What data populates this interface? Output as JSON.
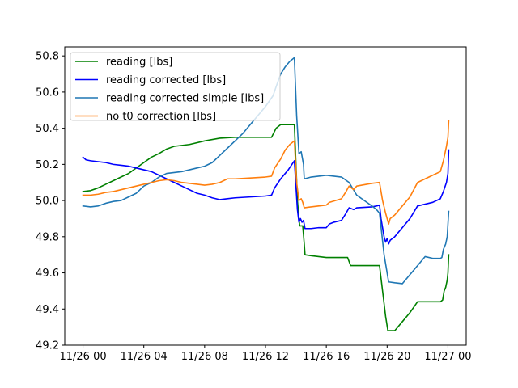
{
  "chart_data": {
    "type": "line",
    "title": "",
    "xlabel": "",
    "ylabel": "",
    "x_ticks": [
      "11/26 00",
      "11/26 04",
      "11/26 08",
      "11/26 12",
      "11/26 16",
      "11/26 20",
      "11/27 00"
    ],
    "x_tick_hours": [
      0,
      4,
      8,
      12,
      16,
      20,
      24
    ],
    "xlim_hours": [
      -1.2,
      25.2
    ],
    "y_ticks": [
      "49.2",
      "49.4",
      "49.6",
      "49.8",
      "50.0",
      "50.2",
      "50.4",
      "50.6",
      "50.8"
    ],
    "y_tick_values": [
      49.2,
      49.4,
      49.6,
      49.8,
      50.0,
      50.2,
      50.4,
      50.6,
      50.8
    ],
    "ylim": [
      49.2,
      50.85
    ],
    "legend": "top-left",
    "grid": false,
    "series": [
      {
        "name": "reading [lbs]",
        "color": "#008000",
        "points": [
          [
            0,
            50.05
          ],
          [
            0.5,
            50.055
          ],
          [
            1,
            50.07
          ],
          [
            1.5,
            50.09
          ],
          [
            2,
            50.11
          ],
          [
            2.5,
            50.13
          ],
          [
            3,
            50.15
          ],
          [
            3.5,
            50.18
          ],
          [
            4,
            50.21
          ],
          [
            4.5,
            50.24
          ],
          [
            5,
            50.26
          ],
          [
            5.5,
            50.285
          ],
          [
            6,
            50.3
          ],
          [
            7,
            50.31
          ],
          [
            8,
            50.33
          ],
          [
            9,
            50.345
          ],
          [
            10,
            50.35
          ],
          [
            11,
            50.35
          ],
          [
            12,
            50.35
          ],
          [
            12.4,
            50.35
          ],
          [
            12.7,
            50.4
          ],
          [
            13,
            50.42
          ],
          [
            13.5,
            50.42
          ],
          [
            13.9,
            50.42
          ],
          [
            14.1,
            50.0
          ],
          [
            14.25,
            49.86
          ],
          [
            14.45,
            49.86
          ],
          [
            14.55,
            49.76
          ],
          [
            14.6,
            49.7
          ],
          [
            15,
            49.695
          ],
          [
            16,
            49.685
          ],
          [
            17,
            49.685
          ],
          [
            17.4,
            49.685
          ],
          [
            17.6,
            49.64
          ],
          [
            18,
            49.64
          ],
          [
            19,
            49.64
          ],
          [
            19.5,
            49.64
          ],
          [
            19.7,
            49.5
          ],
          [
            19.9,
            49.36
          ],
          [
            20.05,
            49.28
          ],
          [
            20.5,
            49.28
          ],
          [
            21,
            49.33
          ],
          [
            21.5,
            49.38
          ],
          [
            22,
            49.44
          ],
          [
            22.5,
            49.44
          ],
          [
            23,
            49.44
          ],
          [
            23.5,
            49.44
          ],
          [
            23.65,
            49.45
          ],
          [
            23.75,
            49.5
          ],
          [
            23.85,
            49.52
          ],
          [
            23.95,
            49.56
          ],
          [
            24,
            49.6
          ],
          [
            24.05,
            49.7
          ]
        ]
      },
      {
        "name": "reading corrected [lbs]",
        "color": "#0000ff",
        "points": [
          [
            0,
            50.24
          ],
          [
            0.2,
            50.225
          ],
          [
            0.5,
            50.22
          ],
          [
            1,
            50.215
          ],
          [
            1.5,
            50.21
          ],
          [
            2,
            50.2
          ],
          [
            2.5,
            50.195
          ],
          [
            3,
            50.19
          ],
          [
            3.5,
            50.18
          ],
          [
            4,
            50.17
          ],
          [
            4.5,
            50.16
          ],
          [
            5,
            50.14
          ],
          [
            5.5,
            50.12
          ],
          [
            6,
            50.1
          ],
          [
            6.5,
            50.08
          ],
          [
            7,
            50.06
          ],
          [
            7.5,
            50.04
          ],
          [
            8,
            50.03
          ],
          [
            8.5,
            50.015
          ],
          [
            9,
            50.005
          ],
          [
            9.5,
            50.01
          ],
          [
            10,
            50.015
          ],
          [
            11,
            50.02
          ],
          [
            12,
            50.025
          ],
          [
            12.4,
            50.03
          ],
          [
            12.6,
            50.07
          ],
          [
            13,
            50.12
          ],
          [
            13.5,
            50.17
          ],
          [
            13.9,
            50.22
          ],
          [
            14.1,
            49.95
          ],
          [
            14.2,
            49.88
          ],
          [
            14.3,
            49.9
          ],
          [
            14.4,
            49.88
          ],
          [
            14.5,
            49.89
          ],
          [
            14.6,
            49.845
          ],
          [
            15,
            49.845
          ],
          [
            15.5,
            49.85
          ],
          [
            16,
            49.85
          ],
          [
            16.2,
            49.87
          ],
          [
            16.5,
            49.88
          ],
          [
            17,
            49.89
          ],
          [
            17.3,
            49.93
          ],
          [
            17.5,
            49.96
          ],
          [
            17.8,
            49.95
          ],
          [
            18,
            49.96
          ],
          [
            19,
            49.965
          ],
          [
            19.3,
            49.97
          ],
          [
            19.5,
            49.975
          ],
          [
            19.6,
            49.9
          ],
          [
            19.8,
            49.8
          ],
          [
            19.9,
            49.77
          ],
          [
            20,
            49.79
          ],
          [
            20.1,
            49.76
          ],
          [
            20.2,
            49.78
          ],
          [
            20.5,
            49.8
          ],
          [
            21,
            49.85
          ],
          [
            21.5,
            49.9
          ],
          [
            22,
            49.97
          ],
          [
            22.5,
            49.98
          ],
          [
            23,
            49.99
          ],
          [
            23.5,
            50.01
          ],
          [
            23.7,
            50.05
          ],
          [
            23.9,
            50.1
          ],
          [
            24,
            50.15
          ],
          [
            24.05,
            50.28
          ]
        ]
      },
      {
        "name": "reading corrected simple [lbs]",
        "color": "#1f77b4",
        "points": [
          [
            0,
            49.97
          ],
          [
            0.5,
            49.965
          ],
          [
            1,
            49.97
          ],
          [
            1.5,
            49.985
          ],
          [
            2,
            49.995
          ],
          [
            2.5,
            50.0
          ],
          [
            3,
            50.02
          ],
          [
            3.5,
            50.04
          ],
          [
            4,
            50.08
          ],
          [
            4.5,
            50.1
          ],
          [
            5,
            50.13
          ],
          [
            5.5,
            50.15
          ],
          [
            6,
            50.155
          ],
          [
            6.5,
            50.16
          ],
          [
            7,
            50.17
          ],
          [
            7.5,
            50.18
          ],
          [
            8,
            50.19
          ],
          [
            8.5,
            50.21
          ],
          [
            9,
            50.25
          ],
          [
            9.5,
            50.29
          ],
          [
            10,
            50.33
          ],
          [
            10.5,
            50.37
          ],
          [
            11,
            50.42
          ],
          [
            11.5,
            50.47
          ],
          [
            12,
            50.52
          ],
          [
            12.5,
            50.58
          ],
          [
            12.7,
            50.63
          ],
          [
            13,
            50.7
          ],
          [
            13.3,
            50.74
          ],
          [
            13.6,
            50.77
          ],
          [
            13.9,
            50.79
          ],
          [
            14.05,
            50.47
          ],
          [
            14.2,
            50.26
          ],
          [
            14.35,
            50.27
          ],
          [
            14.5,
            50.2
          ],
          [
            14.55,
            50.12
          ],
          [
            15,
            50.13
          ],
          [
            16,
            50.14
          ],
          [
            17,
            50.13
          ],
          [
            17.5,
            50.1
          ],
          [
            18,
            50.03
          ],
          [
            18.5,
            50.0
          ],
          [
            19,
            49.97
          ],
          [
            19.3,
            49.95
          ],
          [
            19.5,
            49.93
          ],
          [
            19.8,
            49.7
          ],
          [
            20.1,
            49.55
          ],
          [
            20.5,
            49.545
          ],
          [
            21,
            49.54
          ],
          [
            21.5,
            49.59
          ],
          [
            22,
            49.64
          ],
          [
            22.5,
            49.69
          ],
          [
            23,
            49.68
          ],
          [
            23.5,
            49.68
          ],
          [
            23.6,
            49.685
          ],
          [
            23.7,
            49.73
          ],
          [
            23.85,
            49.76
          ],
          [
            23.95,
            49.8
          ],
          [
            24.05,
            49.94
          ]
        ]
      },
      {
        "name": "no t0 correction [lbs]",
        "color": "#ff7f0e",
        "points": [
          [
            0,
            50.03
          ],
          [
            0.5,
            50.03
          ],
          [
            1,
            50.035
          ],
          [
            1.5,
            50.045
          ],
          [
            2,
            50.05
          ],
          [
            2.5,
            50.06
          ],
          [
            3,
            50.07
          ],
          [
            3.5,
            50.08
          ],
          [
            4,
            50.09
          ],
          [
            4.5,
            50.1
          ],
          [
            5,
            50.11
          ],
          [
            5.5,
            50.115
          ],
          [
            6,
            50.11
          ],
          [
            6.5,
            50.1
          ],
          [
            7,
            50.095
          ],
          [
            7.5,
            50.09
          ],
          [
            8,
            50.085
          ],
          [
            8.5,
            50.09
          ],
          [
            9,
            50.1
          ],
          [
            9.5,
            50.12
          ],
          [
            10,
            50.12
          ],
          [
            11,
            50.125
          ],
          [
            12,
            50.13
          ],
          [
            12.4,
            50.135
          ],
          [
            12.6,
            50.18
          ],
          [
            13,
            50.23
          ],
          [
            13.3,
            50.28
          ],
          [
            13.6,
            50.31
          ],
          [
            13.9,
            50.33
          ],
          [
            14.05,
            50.1
          ],
          [
            14.2,
            50.0
          ],
          [
            14.35,
            50.01
          ],
          [
            14.45,
            49.99
          ],
          [
            14.55,
            49.96
          ],
          [
            15,
            49.965
          ],
          [
            15.5,
            49.97
          ],
          [
            16,
            49.975
          ],
          [
            16.2,
            49.99
          ],
          [
            17,
            50.01
          ],
          [
            17.3,
            50.05
          ],
          [
            17.5,
            50.08
          ],
          [
            17.8,
            50.06
          ],
          [
            18,
            50.08
          ],
          [
            19,
            50.095
          ],
          [
            19.5,
            50.1
          ],
          [
            19.7,
            50.0
          ],
          [
            19.9,
            49.93
          ],
          [
            20,
            49.9
          ],
          [
            20.1,
            49.87
          ],
          [
            20.2,
            49.9
          ],
          [
            20.5,
            49.92
          ],
          [
            21,
            49.97
          ],
          [
            21.5,
            50.02
          ],
          [
            22,
            50.1
          ],
          [
            22.5,
            50.12
          ],
          [
            23,
            50.14
          ],
          [
            23.5,
            50.16
          ],
          [
            23.7,
            50.22
          ],
          [
            23.9,
            50.3
          ],
          [
            24,
            50.35
          ],
          [
            24.05,
            50.44
          ]
        ]
      }
    ]
  }
}
